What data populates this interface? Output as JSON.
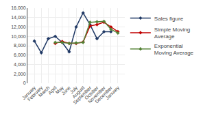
{
  "chart_data": {
    "type": "line",
    "categories": [
      "January",
      "February",
      "March",
      "April",
      "May",
      "June",
      "July",
      "August",
      "September",
      "October",
      "November",
      "December",
      "January"
    ],
    "series": [
      {
        "name": "Sales figure",
        "color": "#1F3864",
        "values": [
          9000,
          6500,
          9500,
          10000,
          8700,
          6700,
          12000,
          15000,
          12500,
          9500,
          11000,
          11000,
          null
        ]
      },
      {
        "name": "Simple Moving\nAverage",
        "color": "#C00000",
        "values": [
          null,
          null,
          null,
          8500,
          8900,
          8500,
          8500,
          8800,
          12200,
          12500,
          13000,
          12000,
          11000
        ]
      },
      {
        "name": "Exponential\nMoving Average",
        "color": "#538135",
        "values": [
          null,
          null,
          null,
          8700,
          8700,
          8500,
          8600,
          8700,
          13000,
          13100,
          13200,
          11500,
          10700
        ]
      }
    ],
    "marker": "diamond",
    "ylim": [
      0,
      16000
    ],
    "yticks": [
      0,
      {
        "value": 2000,
        "label": "2,000"
      },
      {
        "value": 4000,
        "label": "4,000"
      },
      {
        "value": 6000,
        "label": "6,000"
      },
      {
        "value": 8000,
        "label": "8,000"
      },
      {
        "value": 10000,
        "label": "10,000"
      },
      {
        "value": 12000,
        "label": "12,000"
      },
      {
        "value": 14000,
        "label": "14,000"
      },
      {
        "value": 16000,
        "label": "16,000"
      }
    ],
    "grid": true,
    "legend": "right"
  }
}
